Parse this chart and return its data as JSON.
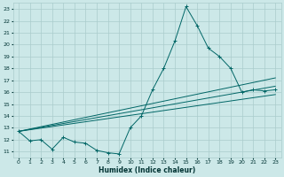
{
  "title": "",
  "xlabel": "Humidex (Indice chaleur)",
  "bg_color": "#cce8e8",
  "grid_color": "#aacccc",
  "line_color": "#006666",
  "xlim": [
    -0.5,
    23.5
  ],
  "ylim": [
    10.5,
    23.5
  ],
  "xticks": [
    0,
    1,
    2,
    3,
    4,
    5,
    6,
    7,
    8,
    9,
    10,
    11,
    12,
    13,
    14,
    15,
    16,
    17,
    18,
    19,
    20,
    21,
    22,
    23
  ],
  "yticks": [
    11,
    12,
    13,
    14,
    15,
    16,
    17,
    18,
    19,
    20,
    21,
    22,
    23
  ],
  "main_line": {
    "x": [
      0,
      1,
      2,
      3,
      4,
      5,
      6,
      7,
      8,
      9,
      10,
      11,
      12,
      13,
      14,
      15,
      16,
      17,
      18,
      19,
      20,
      21,
      22,
      23
    ],
    "y": [
      12.7,
      11.9,
      12.0,
      11.2,
      12.2,
      11.8,
      11.7,
      11.1,
      10.9,
      10.8,
      13.0,
      14.0,
      16.2,
      18.0,
      20.3,
      23.2,
      21.6,
      19.7,
      19.0,
      18.0,
      16.0,
      16.2,
      16.1,
      16.2
    ]
  },
  "trend_lines": [
    {
      "x": [
        0,
        23
      ],
      "y": [
        12.7,
        17.2
      ]
    },
    {
      "x": [
        0,
        23
      ],
      "y": [
        12.7,
        16.5
      ]
    },
    {
      "x": [
        0,
        23
      ],
      "y": [
        12.7,
        15.8
      ]
    }
  ]
}
